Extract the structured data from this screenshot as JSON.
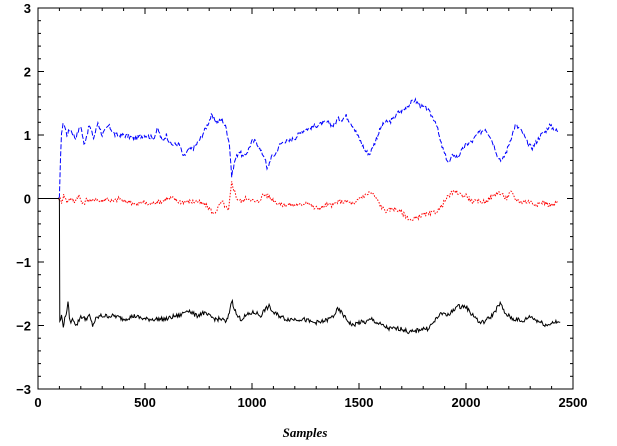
{
  "chart_data": {
    "type": "line",
    "title": "",
    "xlabel": "Samples",
    "ylabel": "",
    "xlim": [
      0,
      2500
    ],
    "ylim": [
      -3,
      3
    ],
    "xticks": [
      0,
      500,
      1000,
      1500,
      2000,
      2500
    ],
    "yticks": [
      -3,
      -2,
      -1,
      0,
      1,
      2,
      3
    ],
    "xtick_labels": [
      "0",
      "500",
      "1000",
      "1500",
      "2000",
      "2500"
    ],
    "ytick_labels": [
      "−3",
      "−2",
      "−1",
      "0",
      "1",
      "2",
      "3"
    ],
    "grid": false,
    "legend": "none",
    "series": [
      {
        "color": "#0000ff",
        "dash": "dashed",
        "points": [
          [
            0,
            0
          ],
          [
            100,
            0
          ],
          [
            105,
            0.6
          ],
          [
            110,
            1.05
          ],
          [
            120,
            1.2
          ],
          [
            135,
            1.0
          ],
          [
            150,
            1.1
          ],
          [
            175,
            0.95
          ],
          [
            200,
            1.15
          ],
          [
            215,
            0.85
          ],
          [
            240,
            1.15
          ],
          [
            260,
            0.95
          ],
          [
            280,
            1.2
          ],
          [
            300,
            1.0
          ],
          [
            330,
            1.15
          ],
          [
            360,
            1.0
          ],
          [
            400,
            1.0
          ],
          [
            450,
            0.95
          ],
          [
            500,
            1.0
          ],
          [
            540,
            0.95
          ],
          [
            560,
            1.1
          ],
          [
            580,
            0.9
          ],
          [
            600,
            1.0
          ],
          [
            620,
            0.85
          ],
          [
            660,
            0.85
          ],
          [
            680,
            0.65
          ],
          [
            700,
            0.75
          ],
          [
            730,
            0.8
          ],
          [
            760,
            0.95
          ],
          [
            790,
            1.15
          ],
          [
            810,
            1.3
          ],
          [
            840,
            1.2
          ],
          [
            860,
            1.25
          ],
          [
            880,
            1.1
          ],
          [
            895,
            0.85
          ],
          [
            905,
            0.35
          ],
          [
            920,
            0.6
          ],
          [
            940,
            0.75
          ],
          [
            960,
            0.65
          ],
          [
            980,
            0.75
          ],
          [
            1000,
            0.9
          ],
          [
            1020,
            0.9
          ],
          [
            1040,
            0.75
          ],
          [
            1060,
            0.65
          ],
          [
            1070,
            0.45
          ],
          [
            1090,
            0.65
          ],
          [
            1110,
            0.7
          ],
          [
            1130,
            0.85
          ],
          [
            1150,
            0.9
          ],
          [
            1170,
            0.9
          ],
          [
            1200,
            0.95
          ],
          [
            1230,
            1.05
          ],
          [
            1260,
            1.1
          ],
          [
            1300,
            1.15
          ],
          [
            1350,
            1.2
          ],
          [
            1380,
            1.15
          ],
          [
            1400,
            1.25
          ],
          [
            1420,
            1.25
          ],
          [
            1440,
            1.3
          ],
          [
            1470,
            1.15
          ],
          [
            1500,
            0.95
          ],
          [
            1530,
            0.75
          ],
          [
            1550,
            0.7
          ],
          [
            1570,
            0.85
          ],
          [
            1600,
            1.1
          ],
          [
            1620,
            1.2
          ],
          [
            1640,
            1.2
          ],
          [
            1660,
            1.25
          ],
          [
            1680,
            1.35
          ],
          [
            1710,
            1.4
          ],
          [
            1740,
            1.5
          ],
          [
            1760,
            1.55
          ],
          [
            1790,
            1.45
          ],
          [
            1820,
            1.4
          ],
          [
            1840,
            1.3
          ],
          [
            1860,
            1.2
          ],
          [
            1880,
            0.9
          ],
          [
            1900,
            0.7
          ],
          [
            1920,
            0.55
          ],
          [
            1940,
            0.7
          ],
          [
            1960,
            0.65
          ],
          [
            1980,
            0.75
          ],
          [
            2000,
            0.85
          ],
          [
            2030,
            0.9
          ],
          [
            2050,
            1.0
          ],
          [
            2070,
            1.05
          ],
          [
            2090,
            1.1
          ],
          [
            2110,
            1.0
          ],
          [
            2130,
            0.85
          ],
          [
            2150,
            0.65
          ],
          [
            2170,
            0.6
          ],
          [
            2190,
            0.75
          ],
          [
            2210,
            0.95
          ],
          [
            2230,
            1.15
          ],
          [
            2250,
            1.1
          ],
          [
            2270,
            1.0
          ],
          [
            2290,
            0.85
          ],
          [
            2310,
            0.8
          ],
          [
            2330,
            0.9
          ],
          [
            2350,
            1.0
          ],
          [
            2370,
            1.05
          ],
          [
            2390,
            1.15
          ],
          [
            2410,
            1.1
          ],
          [
            2430,
            1.05
          ]
        ]
      },
      {
        "color": "#ff0000",
        "dash": "dotted",
        "points": [
          [
            0,
            0
          ],
          [
            100,
            0
          ],
          [
            110,
            -0.05
          ],
          [
            120,
            0.05
          ],
          [
            135,
            -0.05
          ],
          [
            150,
            0.0
          ],
          [
            170,
            -0.05
          ],
          [
            190,
            0.05
          ],
          [
            210,
            -0.1
          ],
          [
            230,
            0.0
          ],
          [
            250,
            -0.05
          ],
          [
            270,
            0.0
          ],
          [
            290,
            -0.05
          ],
          [
            320,
            0.0
          ],
          [
            350,
            -0.05
          ],
          [
            380,
            0.0
          ],
          [
            400,
            -0.05
          ],
          [
            430,
            -0.05
          ],
          [
            460,
            -0.1
          ],
          [
            490,
            -0.05
          ],
          [
            520,
            -0.1
          ],
          [
            550,
            -0.05
          ],
          [
            580,
            -0.05
          ],
          [
            600,
            0.0
          ],
          [
            630,
            0.0
          ],
          [
            660,
            -0.05
          ],
          [
            690,
            -0.05
          ],
          [
            720,
            -0.05
          ],
          [
            750,
            -0.05
          ],
          [
            780,
            -0.1
          ],
          [
            800,
            -0.15
          ],
          [
            820,
            -0.25
          ],
          [
            840,
            -0.15
          ],
          [
            860,
            -0.05
          ],
          [
            880,
            -0.15
          ],
          [
            890,
            -0.2
          ],
          [
            905,
            0.25
          ],
          [
            915,
            0.15
          ],
          [
            930,
            0.0
          ],
          [
            950,
            -0.05
          ],
          [
            970,
            0.0
          ],
          [
            990,
            0.0
          ],
          [
            1010,
            -0.05
          ],
          [
            1030,
            -0.05
          ],
          [
            1050,
            0.05
          ],
          [
            1070,
            0.05
          ],
          [
            1090,
            0.0
          ],
          [
            1110,
            -0.05
          ],
          [
            1140,
            -0.1
          ],
          [
            1170,
            -0.1
          ],
          [
            1200,
            -0.1
          ],
          [
            1230,
            -0.1
          ],
          [
            1260,
            -0.05
          ],
          [
            1290,
            -0.15
          ],
          [
            1320,
            -0.15
          ],
          [
            1350,
            -0.1
          ],
          [
            1380,
            -0.1
          ],
          [
            1400,
            -0.05
          ],
          [
            1430,
            -0.05
          ],
          [
            1450,
            -0.05
          ],
          [
            1480,
            -0.1
          ],
          [
            1500,
            0.0
          ],
          [
            1530,
            0.05
          ],
          [
            1550,
            0.1
          ],
          [
            1570,
            0.05
          ],
          [
            1590,
            -0.05
          ],
          [
            1610,
            -0.15
          ],
          [
            1630,
            -0.2
          ],
          [
            1660,
            -0.15
          ],
          [
            1690,
            -0.2
          ],
          [
            1710,
            -0.25
          ],
          [
            1730,
            -0.3
          ],
          [
            1750,
            -0.35
          ],
          [
            1770,
            -0.3
          ],
          [
            1800,
            -0.25
          ],
          [
            1830,
            -0.25
          ],
          [
            1860,
            -0.2
          ],
          [
            1880,
            -0.15
          ],
          [
            1900,
            -0.05
          ],
          [
            1920,
            0.05
          ],
          [
            1940,
            0.1
          ],
          [
            1960,
            0.1
          ],
          [
            1980,
            0.05
          ],
          [
            2000,
            0.05
          ],
          [
            2030,
            -0.05
          ],
          [
            2060,
            -0.05
          ],
          [
            2090,
            -0.05
          ],
          [
            2110,
            0.0
          ],
          [
            2130,
            0.05
          ],
          [
            2150,
            0.1
          ],
          [
            2170,
            0.05
          ],
          [
            2190,
            0.0
          ],
          [
            2210,
            0.1
          ],
          [
            2230,
            0.0
          ],
          [
            2250,
            -0.05
          ],
          [
            2270,
            -0.05
          ],
          [
            2300,
            -0.05
          ],
          [
            2330,
            -0.1
          ],
          [
            2360,
            -0.05
          ],
          [
            2390,
            -0.1
          ],
          [
            2410,
            -0.1
          ],
          [
            2430,
            -0.05
          ]
        ]
      },
      {
        "color": "#000000",
        "dash": "solid",
        "points": [
          [
            0,
            0
          ],
          [
            100,
            0
          ],
          [
            102,
            -1.95
          ],
          [
            110,
            -1.85
          ],
          [
            118,
            -2.0
          ],
          [
            125,
            -1.9
          ],
          [
            135,
            -1.75
          ],
          [
            140,
            -1.65
          ],
          [
            150,
            -1.95
          ],
          [
            165,
            -1.9
          ],
          [
            180,
            -2.0
          ],
          [
            200,
            -1.85
          ],
          [
            220,
            -1.9
          ],
          [
            240,
            -1.85
          ],
          [
            255,
            -2.0
          ],
          [
            270,
            -1.9
          ],
          [
            290,
            -1.85
          ],
          [
            320,
            -1.85
          ],
          [
            360,
            -1.85
          ],
          [
            400,
            -1.9
          ],
          [
            450,
            -1.85
          ],
          [
            500,
            -1.9
          ],
          [
            550,
            -1.9
          ],
          [
            600,
            -1.9
          ],
          [
            640,
            -1.85
          ],
          [
            660,
            -1.85
          ],
          [
            680,
            -1.8
          ],
          [
            700,
            -1.75
          ],
          [
            720,
            -1.8
          ],
          [
            740,
            -1.85
          ],
          [
            770,
            -1.8
          ],
          [
            800,
            -1.85
          ],
          [
            830,
            -1.9
          ],
          [
            860,
            -1.9
          ],
          [
            880,
            -1.95
          ],
          [
            890,
            -1.85
          ],
          [
            905,
            -1.6
          ],
          [
            915,
            -1.7
          ],
          [
            930,
            -1.85
          ],
          [
            950,
            -1.9
          ],
          [
            970,
            -1.85
          ],
          [
            1000,
            -1.8
          ],
          [
            1020,
            -1.8
          ],
          [
            1040,
            -1.85
          ],
          [
            1060,
            -1.75
          ],
          [
            1080,
            -1.7
          ],
          [
            1100,
            -1.8
          ],
          [
            1130,
            -1.85
          ],
          [
            1160,
            -1.9
          ],
          [
            1200,
            -1.9
          ],
          [
            1240,
            -1.9
          ],
          [
            1280,
            -1.95
          ],
          [
            1320,
            -1.95
          ],
          [
            1360,
            -1.9
          ],
          [
            1380,
            -1.85
          ],
          [
            1400,
            -1.75
          ],
          [
            1420,
            -1.8
          ],
          [
            1440,
            -1.9
          ],
          [
            1470,
            -2.0
          ],
          [
            1500,
            -1.95
          ],
          [
            1530,
            -1.95
          ],
          [
            1560,
            -1.9
          ],
          [
            1580,
            -1.95
          ],
          [
            1610,
            -2.0
          ],
          [
            1640,
            -2.05
          ],
          [
            1670,
            -2.05
          ],
          [
            1700,
            -2.05
          ],
          [
            1730,
            -2.1
          ],
          [
            1760,
            -2.1
          ],
          [
            1790,
            -2.05
          ],
          [
            1820,
            -2.05
          ],
          [
            1850,
            -1.95
          ],
          [
            1870,
            -1.85
          ],
          [
            1900,
            -1.8
          ],
          [
            1920,
            -1.85
          ],
          [
            1940,
            -1.75
          ],
          [
            1960,
            -1.7
          ],
          [
            1980,
            -1.7
          ],
          [
            2000,
            -1.7
          ],
          [
            2020,
            -1.8
          ],
          [
            2040,
            -1.85
          ],
          [
            2060,
            -1.95
          ],
          [
            2080,
            -1.95
          ],
          [
            2100,
            -1.9
          ],
          [
            2120,
            -1.85
          ],
          [
            2140,
            -1.75
          ],
          [
            2160,
            -1.65
          ],
          [
            2180,
            -1.8
          ],
          [
            2200,
            -1.85
          ],
          [
            2220,
            -1.9
          ],
          [
            2240,
            -1.9
          ],
          [
            2260,
            -1.95
          ],
          [
            2280,
            -1.9
          ],
          [
            2300,
            -1.85
          ],
          [
            2320,
            -1.9
          ],
          [
            2350,
            -1.95
          ],
          [
            2380,
            -2.0
          ],
          [
            2400,
            -1.95
          ],
          [
            2420,
            -1.95
          ],
          [
            2440,
            -1.95
          ]
        ]
      }
    ]
  }
}
